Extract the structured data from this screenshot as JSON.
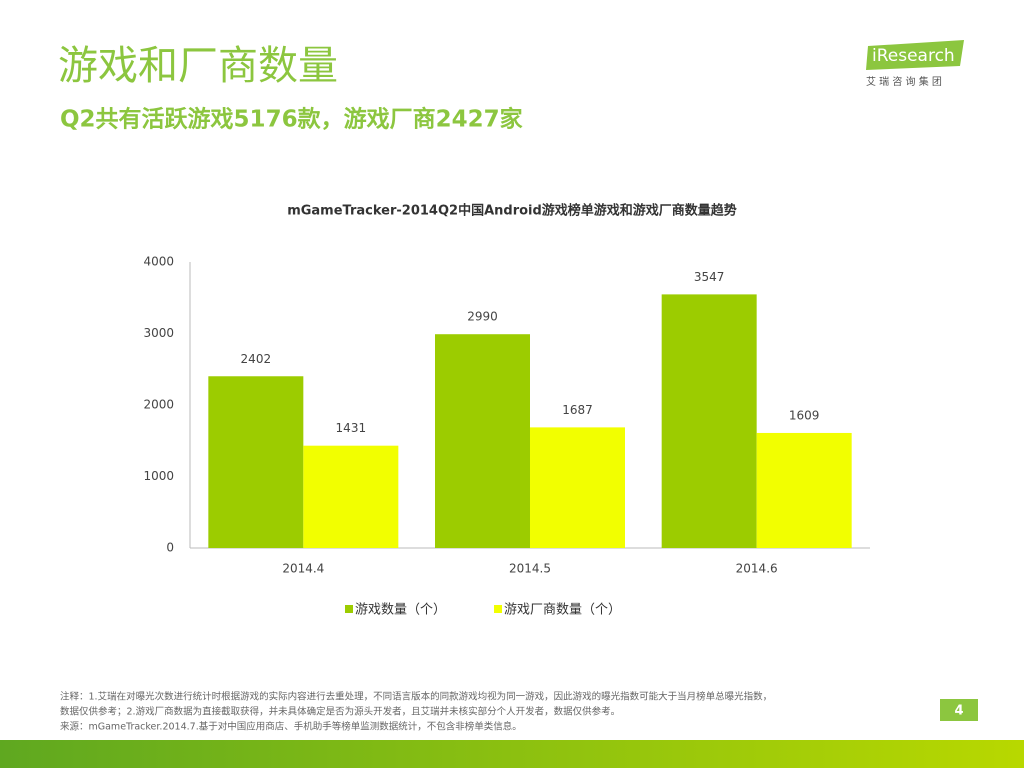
{
  "header": {
    "title": "游戏和厂商数量",
    "subtitle": "Q2共有活跃游戏5176款，游戏厂商2427家",
    "logo": "iResearch",
    "logo_sub": "艾 瑞 咨 询 集 团"
  },
  "chart_data": {
    "type": "bar",
    "title": "mGameTracker-2014Q2中国Android游戏榜单游戏和游戏厂商数量趋势",
    "categories": [
      "2014.4",
      "2014.5",
      "2014.6"
    ],
    "series": [
      {
        "name": "游戏数量（个）",
        "color": "#9ccc00",
        "values": [
          2402,
          2990,
          3547
        ]
      },
      {
        "name": "游戏厂商数量（个）",
        "color": "#f2ff00",
        "values": [
          1431,
          1687,
          1609
        ]
      }
    ],
    "ylim": [
      0,
      4000
    ],
    "yticks": [
      0,
      1000,
      2000,
      3000,
      4000
    ]
  },
  "footer": {
    "notes": [
      "注释：1.艾瑞在对曝光次数进行统计时根据游戏的实际内容进行去重处理，不同语言版本的同款游戏均视为同一游戏，因此游戏的曝光指数可能大于当月榜单总曝光指数，",
      "数据仅供参考；2.游戏厂商数据为直接截取获得，并未具体确定是否为源头开发者，且艾瑞并未核实部分个人开发者，数据仅供参考。",
      "来源：mGameTracker.2014.7.基于对中国应用商店、手机助手等榜单监测数据统计，不包含非榜单类信息。"
    ],
    "page": "4"
  }
}
